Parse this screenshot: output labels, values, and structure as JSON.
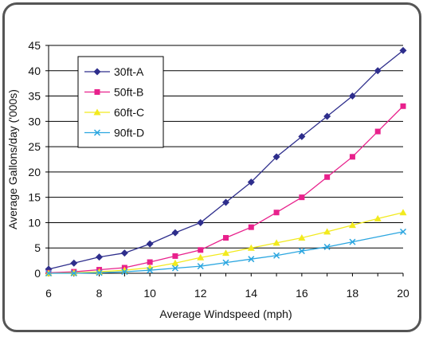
{
  "chart_data": {
    "type": "line",
    "title": "",
    "xlabel": "Average Windspeed (mph)",
    "ylabel": "Average Gallons/day ('000s)",
    "xlim": [
      6,
      20
    ],
    "ylim": [
      0,
      45
    ],
    "xticks": [
      6,
      8,
      10,
      12,
      14,
      16,
      18,
      20
    ],
    "yticks": [
      0,
      5,
      10,
      15,
      20,
      25,
      30,
      35,
      40,
      45
    ],
    "grid": "horizontal",
    "legend_position": "top-left",
    "x": [
      6,
      7,
      8,
      9,
      10,
      11,
      12,
      13,
      14,
      15,
      16,
      17,
      18,
      19,
      20
    ],
    "series": [
      {
        "name": "30ft-A",
        "color": "#2e2e8c",
        "marker": "diamond",
        "values": [
          0.8,
          2,
          3.2,
          4,
          5.8,
          8,
          10,
          14,
          18,
          23,
          27,
          31,
          35,
          40,
          44
        ]
      },
      {
        "name": "50ft-B",
        "color": "#e8218c",
        "marker": "square",
        "values": [
          0.1,
          0.3,
          0.7,
          1.1,
          2.2,
          3.4,
          4.6,
          7,
          9.1,
          12,
          15,
          19,
          23,
          28,
          33
        ]
      },
      {
        "name": "60ft-C",
        "color": "#f2ea1e",
        "marker": "triangle",
        "values": [
          0,
          0.1,
          0.3,
          0.6,
          1.1,
          2,
          3.1,
          4,
          5,
          6,
          7,
          8.2,
          9.5,
          10.8,
          12
        ]
      },
      {
        "name": "90ft-D",
        "color": "#2ba6e0",
        "marker": "x",
        "values": [
          0,
          0,
          0.1,
          0.3,
          0.6,
          1,
          1.4,
          2.1,
          2.8,
          3.5,
          4.4,
          5.2,
          6.2,
          null,
          8.2
        ]
      }
    ]
  }
}
